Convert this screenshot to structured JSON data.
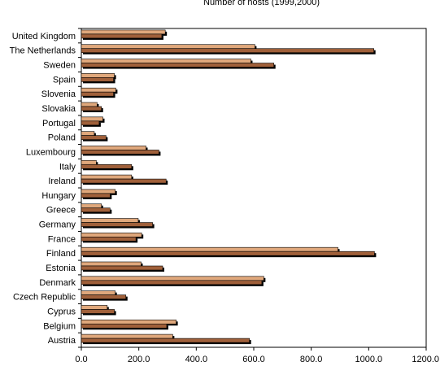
{
  "chart_data": {
    "type": "bar",
    "orientation": "horizontal",
    "title": "Number of hosts (1999,2000)",
    "xlabel": "",
    "ylabel": "",
    "xlim": [
      0,
      1200
    ],
    "x_ticks": [
      "0.0",
      "200.0",
      "400.0",
      "600.0",
      "800.0",
      "1000.0",
      "1200.0"
    ],
    "grid": false,
    "legend": "none",
    "categories": [
      "United Kingdom",
      "The Netherlands",
      "Sweden",
      "Spain",
      "Slovenia",
      "Slovakia",
      "Portugal",
      "Poland",
      "Luxembourg",
      "Italy",
      "Ireland",
      "Hungary",
      "Greece",
      "Germany",
      "France",
      "Finland",
      "Estonia",
      "Denmark",
      "Czech Republic",
      "Cyprus",
      "Belgium",
      "Austria"
    ],
    "series": [
      {
        "values": [
          292,
          604,
          590,
          115,
          120,
          55,
          75,
          45,
          225,
          52,
          175,
          118,
          70,
          198,
          210,
          893,
          208,
          635,
          118,
          90,
          330,
          318
        ],
        "color": "#e0a87c"
      },
      {
        "values": [
          280,
          1018,
          670,
          112,
          112,
          70,
          62,
          86,
          270,
          175,
          295,
          100,
          100,
          248,
          190,
          1020,
          283,
          628,
          155,
          115,
          297,
          585
        ],
        "color": "#a0603a"
      }
    ]
  }
}
